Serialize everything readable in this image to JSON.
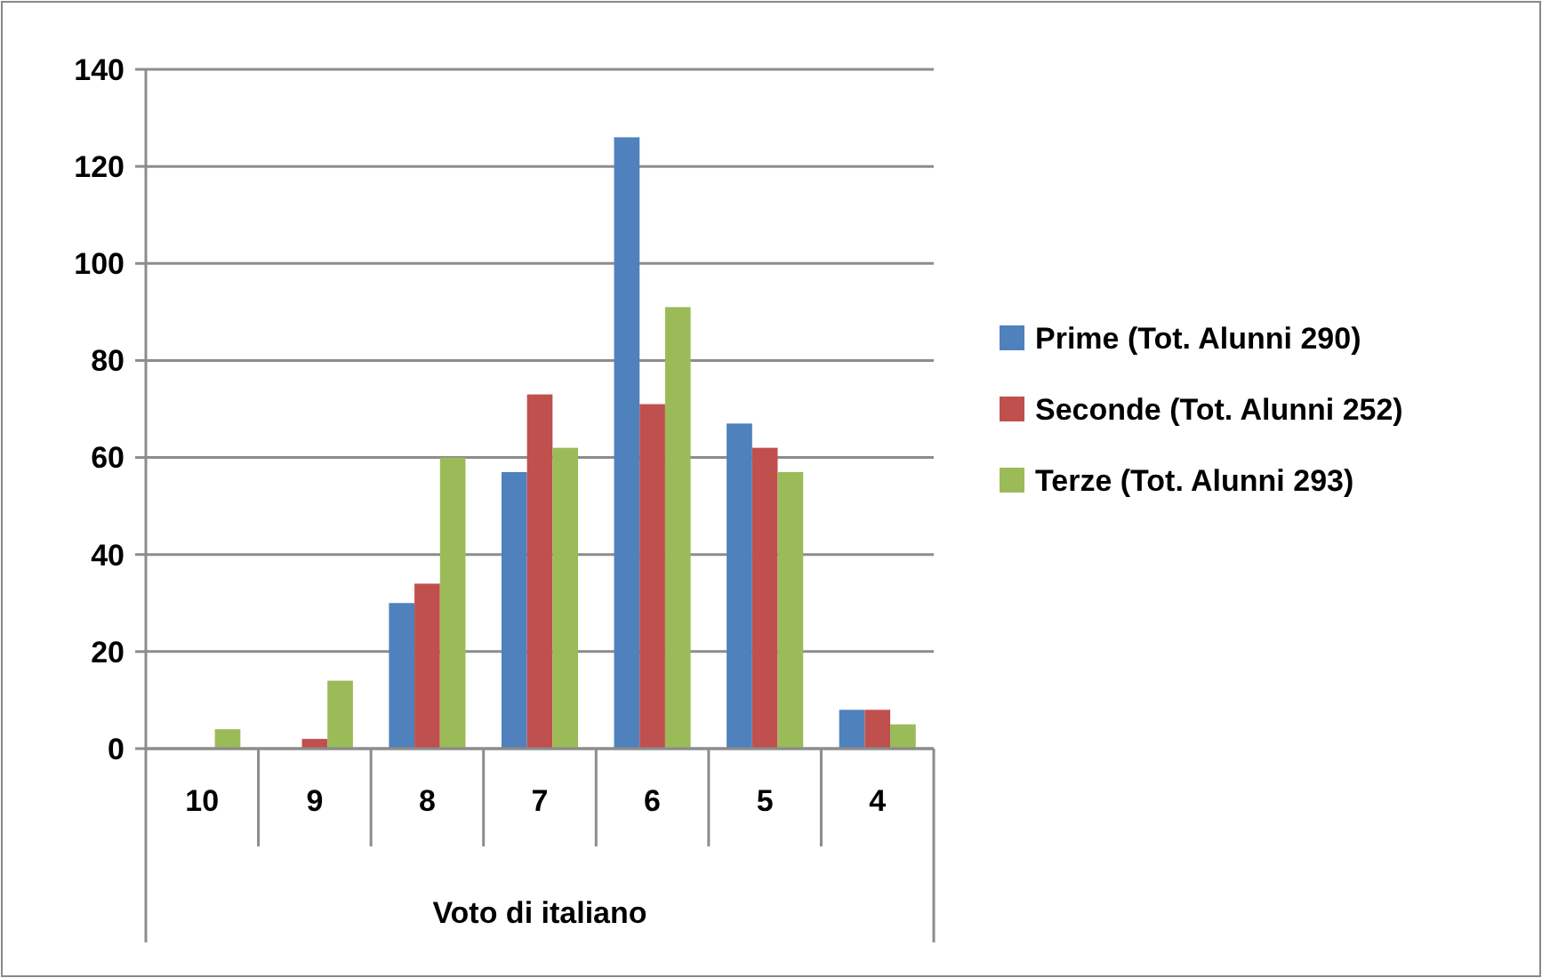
{
  "chart_data": {
    "type": "bar",
    "xlabel": "Voto di italiano",
    "categories": [
      "10",
      "9",
      "8",
      "7",
      "6",
      "5",
      "4"
    ],
    "series": [
      {
        "name": "Prime (Tot. Alunni 290)",
        "color": "#4f81bd",
        "values": [
          0,
          0,
          30,
          57,
          126,
          67,
          8
        ]
      },
      {
        "name": "Seconde (Tot. Alunni 252)",
        "color": "#c0504d",
        "values": [
          0,
          2,
          34,
          73,
          71,
          62,
          8
        ]
      },
      {
        "name": "Terze (Tot. Alunni 293)",
        "color": "#9bbb59",
        "values": [
          4,
          14,
          60,
          62,
          91,
          57,
          5
        ]
      }
    ],
    "ylim": [
      0,
      140
    ],
    "yticks": [
      0,
      20,
      40,
      60,
      80,
      100,
      120,
      140
    ],
    "grid": "y",
    "legend": "right"
  }
}
